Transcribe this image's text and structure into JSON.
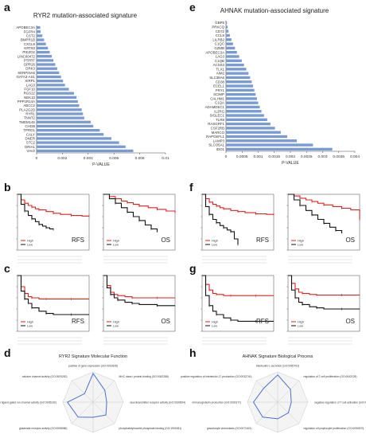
{
  "panel_letters": [
    "a",
    "e",
    "b",
    "f",
    "c",
    "g",
    "d",
    "h"
  ],
  "km_labels": {
    "rfs": "RFS",
    "os": "OS"
  },
  "chart_data": [
    {
      "panel": "a",
      "type": "bar",
      "orientation": "horizontal",
      "title": "RYR2 mutation-associated signature",
      "xlabel": "P-VALUE",
      "xlim": [
        0,
        0.01
      ],
      "xticks": [
        "0",
        "0.002",
        "0.004",
        "0.006",
        "0.008",
        "0.01"
      ],
      "color": "#7a9ad4",
      "categories": [
        "APOBEC3A",
        "FGFR4",
        "CST2",
        "BMPR1B",
        "CXCL9",
        "KRT83",
        "PIEZO2",
        "LINC00472",
        "PTPRT",
        "GPR26",
        "DRK3",
        "SERPINA6",
        "GATA3-AS1",
        "XIRP1",
        "LAG3",
        "FGF10",
        "RGS22",
        "NEK10",
        "PPP1R14A",
        "ABCC2",
        "PLA2G2D",
        "RYR1",
        "TNNT2",
        "TMEM145",
        "CHGB",
        "TPRG1",
        "CALY",
        "DNER",
        "STC2",
        "GRIA1",
        "VAV2"
      ],
      "values": [
        0.00028,
        0.00031,
        0.00045,
        0.00058,
        0.00072,
        0.00088,
        0.00102,
        0.00118,
        0.0013,
        0.00145,
        0.0016,
        0.00175,
        0.0019,
        0.00205,
        0.0022,
        0.0025,
        0.0029,
        0.0031,
        0.0032,
        0.0033,
        0.0035,
        0.0036,
        0.0037,
        0.0042,
        0.0044,
        0.0049,
        0.0052,
        0.0058,
        0.0064,
        0.0069,
        0.0075
      ]
    },
    {
      "panel": "e",
      "type": "bar",
      "orientation": "horizontal",
      "title": "AHNAK mutation-associated signature",
      "xlabel": "P-VALUE",
      "xlim": [
        0,
        0.004
      ],
      "xticks": [
        "0",
        "0.0005",
        "0.001",
        "0.0015",
        "0.002",
        "0.0025",
        "0.003",
        "0.0035",
        "0.004"
      ],
      "color": "#7a9ad4",
      "categories": [
        "GBP5",
        "PRKCQ",
        "CD72",
        "CCL8",
        "LILRB2",
        "C1QC",
        "GZMB",
        "APOBEC3A",
        "LAG3",
        "C1QB",
        "ACSS3",
        "TLX1",
        "AIM2",
        "SLC38A6",
        "CD38",
        "ECEL1",
        "FRY1",
        "SCIMP",
        "CALHM1",
        "C1QA",
        "ADAMDEC1",
        "IL2RG",
        "SIGLEC1",
        "TLR8",
        "RASGRF1",
        "CSF2RB",
        "MARCO",
        "RAPGEFL1",
        "LAMP3",
        "SLCO5A1",
        "IDO1"
      ],
      "values": [
        3e-05,
        5e-05,
        8e-05,
        0.00012,
        0.00017,
        0.00022,
        0.00028,
        0.00034,
        0.00041,
        0.00049,
        0.00056,
        0.00063,
        0.0007,
        0.00075,
        0.0008,
        0.00084,
        0.00088,
        0.00092,
        0.00096,
        0.001,
        0.00105,
        0.0011,
        0.00118,
        0.00128,
        0.00138,
        0.00152,
        0.0017,
        0.0019,
        0.0022,
        0.0027,
        0.0033
      ]
    },
    {
      "panel": "b",
      "type": "line",
      "subtype": "kaplan-meier",
      "endpoint": "RFS",
      "ylim": [
        0,
        1
      ],
      "series": [
        {
          "name": "High",
          "color": "#dd2222",
          "x": [
            0,
            10,
            20,
            30,
            40,
            50,
            60,
            80,
            100,
            120,
            150,
            180,
            200
          ],
          "y": [
            1.0,
            0.9,
            0.84,
            0.8,
            0.77,
            0.74,
            0.72,
            0.69,
            0.66,
            0.64,
            0.62,
            0.61,
            0.61
          ]
        },
        {
          "name": "Low",
          "color": "#111111",
          "x": [
            0,
            10,
            20,
            30,
            40,
            50,
            60,
            70,
            80,
            90,
            100
          ],
          "y": [
            1.0,
            0.82,
            0.7,
            0.62,
            0.56,
            0.51,
            0.46,
            0.43,
            0.4,
            0.38,
            0.37
          ]
        }
      ]
    },
    {
      "panel": "b",
      "type": "line",
      "subtype": "kaplan-meier",
      "endpoint": "OS",
      "ylim": [
        0,
        1
      ],
      "series": [
        {
          "name": "High",
          "color": "#dd2222",
          "x": [
            0,
            20,
            40,
            60,
            80,
            100,
            120,
            150,
            180,
            210,
            240
          ],
          "y": [
            1.0,
            0.96,
            0.92,
            0.88,
            0.85,
            0.82,
            0.79,
            0.76,
            0.73,
            0.7,
            0.68
          ]
        },
        {
          "name": "Low",
          "color": "#111111",
          "x": [
            0,
            20,
            40,
            60,
            80,
            100,
            120,
            140,
            160,
            180
          ],
          "y": [
            1.0,
            0.92,
            0.84,
            0.76,
            0.68,
            0.6,
            0.53,
            0.45,
            0.38,
            0.32
          ]
        }
      ]
    },
    {
      "panel": "f",
      "type": "line",
      "subtype": "kaplan-meier",
      "endpoint": "RFS",
      "ylim": [
        0,
        1
      ],
      "series": [
        {
          "name": "High",
          "color": "#dd2222",
          "x": [
            0,
            10,
            20,
            30,
            40,
            50,
            60,
            80,
            100,
            120,
            150,
            180,
            200
          ],
          "y": [
            1.0,
            0.92,
            0.86,
            0.82,
            0.79,
            0.76,
            0.74,
            0.71,
            0.69,
            0.67,
            0.65,
            0.64,
            0.64
          ]
        },
        {
          "name": "Low",
          "color": "#111111",
          "x": [
            0,
            10,
            20,
            30,
            40,
            50,
            60,
            70,
            80,
            90,
            100
          ],
          "y": [
            1.0,
            0.78,
            0.64,
            0.55,
            0.49,
            0.44,
            0.4,
            0.36,
            0.33,
            0.2,
            0.1
          ]
        }
      ]
    },
    {
      "panel": "f",
      "type": "line",
      "subtype": "kaplan-meier",
      "endpoint": "OS",
      "ylim": [
        0,
        1
      ],
      "series": [
        {
          "name": "High",
          "color": "#dd2222",
          "x": [
            0,
            20,
            40,
            60,
            80,
            100,
            120,
            150,
            180,
            210,
            240
          ],
          "y": [
            1.0,
            0.97,
            0.93,
            0.9,
            0.87,
            0.84,
            0.81,
            0.78,
            0.75,
            0.72,
            0.55
          ]
        },
        {
          "name": "Low",
          "color": "#111111",
          "x": [
            0,
            20,
            40,
            60,
            80,
            100,
            120,
            140,
            160,
            180
          ],
          "y": [
            1.0,
            0.9,
            0.8,
            0.71,
            0.63,
            0.55,
            0.48,
            0.41,
            0.35,
            0.3
          ]
        }
      ]
    },
    {
      "panel": "c",
      "type": "line",
      "subtype": "kaplan-meier",
      "endpoint": "RFS",
      "ylim": [
        0,
        1
      ],
      "series": [
        {
          "name": "High",
          "color": "#dd2222",
          "x": [
            0,
            10,
            20,
            30,
            40,
            60,
            80,
            100,
            150,
            200
          ],
          "y": [
            1.0,
            0.8,
            0.68,
            0.62,
            0.6,
            0.58,
            0.58,
            0.58,
            0.58,
            0.58
          ]
        },
        {
          "name": "Low",
          "color": "#111111",
          "x": [
            0,
            10,
            20,
            30,
            40,
            60,
            80,
            100,
            150,
            200
          ],
          "y": [
            1.0,
            0.72,
            0.58,
            0.5,
            0.42,
            0.36,
            0.32,
            0.3,
            0.3,
            0.3
          ]
        }
      ]
    },
    {
      "panel": "c",
      "type": "line",
      "subtype": "kaplan-meier",
      "endpoint": "OS",
      "ylim": [
        0,
        1
      ],
      "series": [
        {
          "name": "High",
          "color": "#dd2222",
          "x": [
            0,
            10,
            20,
            30,
            40,
            60,
            80,
            100,
            150,
            200
          ],
          "y": [
            1.0,
            0.82,
            0.7,
            0.66,
            0.64,
            0.62,
            0.6,
            0.6,
            0.6,
            0.6
          ]
        },
        {
          "name": "Low",
          "color": "#111111",
          "x": [
            0,
            10,
            20,
            30,
            40,
            60,
            80,
            100,
            150,
            200
          ],
          "y": [
            1.0,
            0.78,
            0.66,
            0.6,
            0.56,
            0.52,
            0.5,
            0.48,
            0.46,
            0.46
          ]
        }
      ]
    },
    {
      "panel": "g",
      "type": "line",
      "subtype": "kaplan-meier",
      "endpoint": "RFS",
      "ylim": [
        0,
        1
      ],
      "series": [
        {
          "name": "High",
          "color": "#dd2222",
          "x": [
            0,
            10,
            20,
            30,
            40,
            60,
            80,
            100,
            150,
            200
          ],
          "y": [
            1.0,
            0.84,
            0.74,
            0.68,
            0.66,
            0.64,
            0.64,
            0.64,
            0.64,
            0.64
          ]
        },
        {
          "name": "Low",
          "color": "#111111",
          "x": [
            0,
            10,
            20,
            30,
            40,
            60,
            80,
            100,
            150,
            200
          ],
          "y": [
            1.0,
            0.64,
            0.46,
            0.36,
            0.3,
            0.24,
            0.2,
            0.18,
            0.18,
            0.18
          ]
        }
      ]
    },
    {
      "panel": "g",
      "type": "line",
      "subtype": "kaplan-meier",
      "endpoint": "OS",
      "ylim": [
        0,
        1
      ],
      "series": [
        {
          "name": "High",
          "color": "#dd2222",
          "x": [
            0,
            10,
            20,
            30,
            40,
            60,
            80,
            100,
            150,
            200
          ],
          "y": [
            1.0,
            0.86,
            0.76,
            0.7,
            0.68,
            0.66,
            0.65,
            0.65,
            0.65,
            0.65
          ]
        },
        {
          "name": "Low",
          "color": "#111111",
          "x": [
            0,
            10,
            20,
            30,
            40,
            60,
            80,
            100,
            150,
            200
          ],
          "y": [
            1.0,
            0.74,
            0.6,
            0.52,
            0.48,
            0.44,
            0.42,
            0.4,
            0.4,
            0.4
          ]
        }
      ]
    },
    {
      "panel": "d",
      "type": "radar",
      "title": "RYR2 Signature Molecular Function",
      "color": "#4a6fd1",
      "categories": [
        "positive of gene expression (GO:0010628)",
        "MHC class I protein binding (GO:0042288)",
        "neurotransmitter receptor activity (GO:0030594)",
        "phosphatidylinositol phosphate binding (GO:1901981)",
        "neurotransmitter receptor activity (GO:0030594)",
        "glutamate receptor activity (GO:0008066)",
        "extracellular ligand-gated ion channel activity (GO:0005230)",
        "calcium channel activity (GO:0005262)"
      ],
      "values": [
        0.95,
        0.55,
        0.45,
        0.6,
        0.5,
        0.7,
        0.85,
        0.4
      ]
    },
    {
      "panel": "h",
      "type": "radar",
      "title": "AHNAK Signature Biological Process",
      "color": "#4a6fd1",
      "categories": [
        "interleukin-1 secretion (GO:0050702)",
        "regulation of T cell proliferation (GO:0042129)",
        "negative regulation of T cell activation (GO:0050868)",
        "regulation of lymphocyte proliferation (GO:0050670)",
        "negative regulation of defense response (GO:0031348)",
        "granulocyte chemotaxis (GO:0071621)",
        "immunoglobulin production (GO:0002377)",
        "positive regulation of interleukin-17 production (GO:0032740)"
      ],
      "values": [
        0.9,
        0.6,
        0.45,
        0.5,
        0.55,
        0.7,
        0.8,
        0.65
      ]
    }
  ]
}
